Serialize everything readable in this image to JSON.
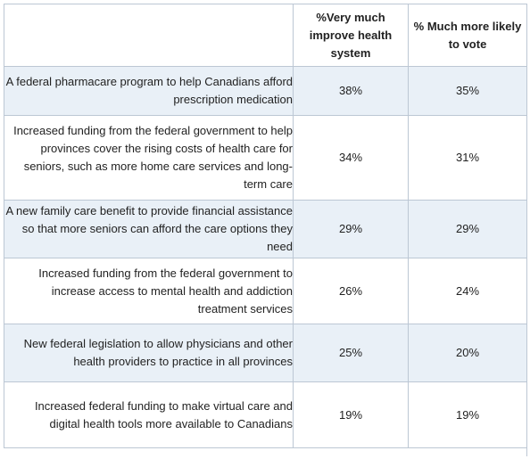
{
  "headers": {
    "col1": "",
    "col2": "%Very much improve health system",
    "col3": "% Much more likely to vote"
  },
  "rows": [
    {
      "label": "A federal pharmacare program to help Canadians afford prescription medication",
      "improve": "38%",
      "vote": "35%"
    },
    {
      "label": "Increased funding from the federal government to help provinces cover the rising costs of health care for seniors, such as more home care services and long-term care",
      "improve": "34%",
      "vote": "31%"
    },
    {
      "label": "A new family care benefit to provide financial assistance so that more seniors can afford the care options they need",
      "improve": "29%",
      "vote": "29%"
    },
    {
      "label": "Increased funding from the federal government to increase access to mental health and addiction treatment services",
      "improve": "26%",
      "vote": "24%"
    },
    {
      "label": "New federal legislation to allow physicians and other health providers to practice in all provinces",
      "improve": "25%",
      "vote": "20%"
    },
    {
      "label": "Increased federal funding to make virtual care and digital health tools more available to Canadians",
      "improve": "19%",
      "vote": "19%"
    }
  ],
  "colors": {
    "shaded_row": "#e9f0f7",
    "border": "#bcc7d4",
    "text": "#222222"
  }
}
